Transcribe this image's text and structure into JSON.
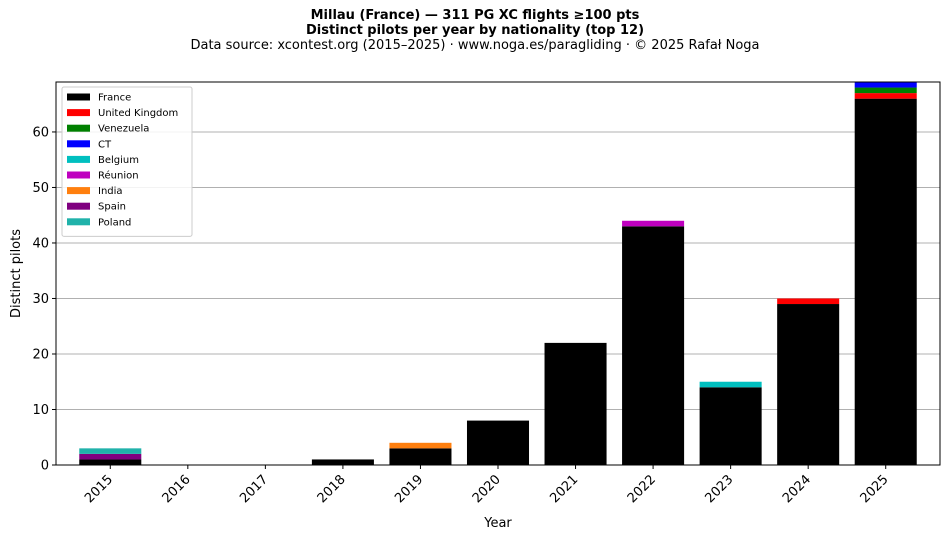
{
  "title_line1": "Millau (France)  —  311 PG XC flights ≥100 pts",
  "title_line2": "Distinct pilots per year by nationality (top 12)",
  "subtitle": "Data source: xcontest.org (2015–2025)  ·  www.noga.es/paragliding  ·  © 2025 Rafał Noga",
  "chart_data": {
    "type": "bar",
    "stacked": true,
    "categories": [
      "2015",
      "2016",
      "2017",
      "2018",
      "2019",
      "2020",
      "2021",
      "2022",
      "2023",
      "2024",
      "2025"
    ],
    "series": [
      {
        "name": "France",
        "color": "#000000",
        "values": [
          1,
          0,
          0,
          1,
          3,
          8,
          22,
          43,
          14,
          29,
          66
        ]
      },
      {
        "name": "United Kingdom",
        "color": "#ff0000",
        "values": [
          0,
          0,
          0,
          0,
          0,
          0,
          0,
          0,
          0,
          1,
          1
        ]
      },
      {
        "name": "Venezuela",
        "color": "#008000",
        "values": [
          0,
          0,
          0,
          0,
          0,
          0,
          0,
          0,
          0,
          0,
          1
        ]
      },
      {
        "name": "CT",
        "color": "#0000ff",
        "values": [
          0,
          0,
          0,
          0,
          0,
          0,
          0,
          0,
          0,
          0,
          1
        ]
      },
      {
        "name": "Belgium",
        "color": "#00bfbf",
        "values": [
          0,
          0,
          0,
          0,
          0,
          0,
          0,
          0,
          1,
          0,
          0
        ]
      },
      {
        "name": "Réunion",
        "color": "#bf00bf",
        "values": [
          0,
          0,
          0,
          0,
          0,
          0,
          0,
          1,
          0,
          0,
          0
        ]
      },
      {
        "name": "India",
        "color": "#ff7f0e",
        "values": [
          0,
          0,
          0,
          0,
          1,
          0,
          0,
          0,
          0,
          0,
          0
        ]
      },
      {
        "name": "Spain",
        "color": "#800080",
        "values": [
          1,
          0,
          0,
          0,
          0,
          0,
          0,
          0,
          0,
          0,
          0
        ]
      },
      {
        "name": "Poland",
        "color": "#20b2aa",
        "values": [
          1,
          0,
          0,
          0,
          0,
          0,
          0,
          0,
          0,
          0,
          0
        ]
      }
    ],
    "xlabel": "Year",
    "ylabel": "Distinct pilots",
    "ylim": [
      0,
      69
    ],
    "yticks": [
      0,
      10,
      20,
      30,
      40,
      50,
      60
    ],
    "grid": "horizontal",
    "legend": "top-left"
  }
}
